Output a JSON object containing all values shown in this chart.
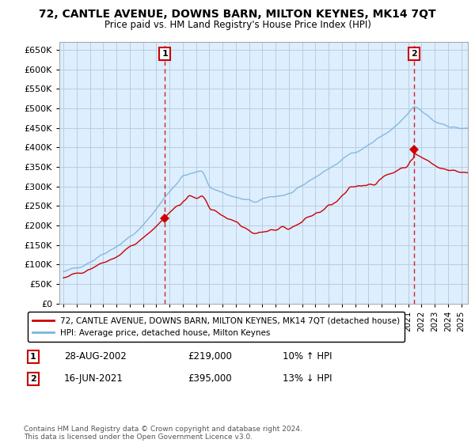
{
  "title": "72, CANTLE AVENUE, DOWNS BARN, MILTON KEYNES, MK14 7QT",
  "subtitle": "Price paid vs. HM Land Registry's House Price Index (HPI)",
  "ylim": [
    0,
    670000
  ],
  "yticks": [
    0,
    50000,
    100000,
    150000,
    200000,
    250000,
    300000,
    350000,
    400000,
    450000,
    500000,
    550000,
    600000,
    650000
  ],
  "hpi_color": "#7ab4d8",
  "price_color": "#cc0000",
  "bg_color": "#ffffff",
  "chart_bg": "#ddeeff",
  "grid_color": "#bbccdd",
  "legend_label_price": "72, CANTLE AVENUE, DOWNS BARN, MILTON KEYNES, MK14 7QT (detached house)",
  "legend_label_hpi": "HPI: Average price, detached house, Milton Keynes",
  "transaction1_date": "28-AUG-2002",
  "transaction1_price": 219000,
  "transaction1_hpi": "10% ↑ HPI",
  "transaction2_date": "16-JUN-2021",
  "transaction2_price": 395000,
  "transaction2_hpi": "13% ↓ HPI",
  "t1_year": 2002.65,
  "t2_year": 2021.46,
  "copyright": "Contains HM Land Registry data © Crown copyright and database right 2024.\nThis data is licensed under the Open Government Licence v3.0.",
  "xstart": 1995,
  "xend": 2025
}
